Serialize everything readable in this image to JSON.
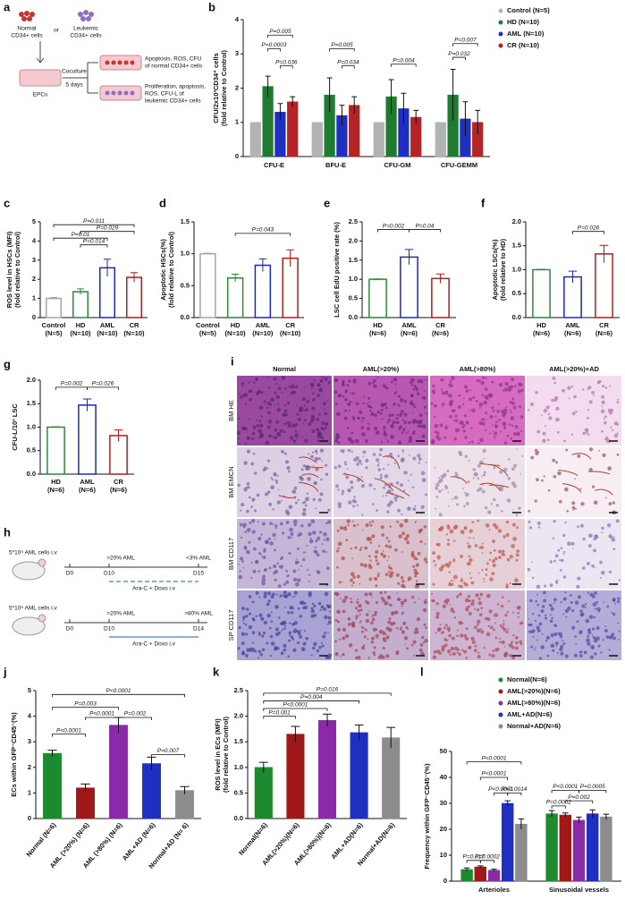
{
  "chart_data": [
    {
      "panel": "b",
      "type": "bar",
      "bar_fill": "solid",
      "y_label": [
        "CFU/2x10³CD34⁺ cells",
        "(fold relative to Control)"
      ],
      "categories": [
        "CFU-E",
        "BFU-E",
        "CFU-GM",
        "CFU-GEMM"
      ],
      "series": [
        {
          "name": "Control (N=5)",
          "color": "#b3b3b3",
          "values": [
            1,
            1,
            1,
            1
          ]
        },
        {
          "name": "HD (N=10)",
          "color": "#1e7b2f",
          "values": [
            2.05,
            1.8,
            1.75,
            1.8
          ],
          "errors": [
            0.3,
            0.5,
            0.5,
            0.75
          ]
        },
        {
          "name": "AML (N=10)",
          "color": "#1f2fbf",
          "values": [
            1.3,
            1.2,
            1.4,
            1.1
          ],
          "errors": [
            0.25,
            0.3,
            0.45,
            0.5
          ]
        },
        {
          "name": "CR (N=10)",
          "color": "#b52424",
          "values": [
            1.6,
            1.5,
            1.15,
            1.0
          ],
          "errors": [
            0.15,
            0.25,
            0.2,
            0.35
          ]
        }
      ],
      "ylim": [
        0,
        4
      ],
      "yticks": [
        0,
        1,
        2,
        3,
        4
      ],
      "legend": "upper right",
      "annotations": [
        "P=0.005",
        "P=0.0003",
        "P=0.036",
        "P=0.005",
        "P=0.034",
        "P=0.004",
        "P=0.007",
        "P=0.032"
      ]
    },
    {
      "panel": "c",
      "type": "bar",
      "bar_fill": "outline",
      "y_label": [
        "ROS level in HSCs (MFI)",
        "(fold relative to Control)"
      ],
      "categories": [
        "Control",
        "HD",
        "AML",
        "CR"
      ],
      "category_notes": [
        "(N=5)",
        "(N=10)",
        "(N=10)",
        "(N=10)"
      ],
      "colors": [
        "#a6a6a6",
        "#2e8b3a",
        "#1c2bb5",
        "#b01e1e"
      ],
      "values": [
        1,
        1.35,
        2.6,
        2.1
      ],
      "errors": [
        0.05,
        0.15,
        0.45,
        0.25
      ],
      "ylim": [
        0,
        5
      ],
      "yticks": [
        0,
        1,
        2,
        3,
        4,
        5
      ],
      "annotations": [
        "P=0.011",
        "P=0.029",
        "P=0.01",
        "P=0.014"
      ]
    },
    {
      "panel": "d",
      "type": "bar",
      "bar_fill": "outline",
      "y_label": [
        "Apoptotic HSCs(%)",
        "(fold relative to Control)"
      ],
      "categories": [
        "Control",
        "HD",
        "AML",
        "CR"
      ],
      "category_notes": [
        "(N=5)",
        "(N=10)",
        "(N=10)",
        "(N=10)"
      ],
      "colors": [
        "#a6a6a6",
        "#2e8b3a",
        "#1c2bb5",
        "#b01e1e"
      ],
      "values": [
        1,
        0.62,
        0.82,
        0.93
      ],
      "errors": [
        0.01,
        0.06,
        0.1,
        0.13
      ],
      "ylim": [
        0,
        1.5
      ],
      "yticks": [
        {
          "value": 0,
          "label": "0.0"
        },
        {
          "value": 0.5,
          "label": "0.5"
        },
        {
          "value": 1,
          "label": "1.0"
        },
        {
          "value": 1.5,
          "label": "1.5"
        }
      ],
      "annotations": [
        "P=0.043"
      ]
    },
    {
      "panel": "e",
      "type": "bar",
      "bar_fill": "outline",
      "y_label": [
        "LSC cell EdU positive rate (%)"
      ],
      "categories": [
        "HD",
        "AML",
        "CR"
      ],
      "category_notes": [
        "(N=6)",
        "(N=6)",
        "(N=6)"
      ],
      "colors": [
        "#2e8b3a",
        "#1c2bb5",
        "#b01e1e"
      ],
      "values": [
        1,
        1.58,
        1.02
      ],
      "errors": [
        0.01,
        0.2,
        0.12
      ],
      "ylim": [
        0,
        2.5
      ],
      "yticks": [
        {
          "value": 0,
          "label": "0.0"
        },
        {
          "value": 0.5,
          "label": "0.5"
        },
        {
          "value": 1,
          "label": "1.0"
        },
        {
          "value": 1.5,
          "label": "1.5"
        },
        {
          "value": 2,
          "label": "2.0"
        },
        {
          "value": 2.5,
          "label": "2.5"
        }
      ],
      "annotations": [
        "P=0.002",
        "P=0.04"
      ]
    },
    {
      "panel": "f",
      "type": "bar",
      "bar_fill": "outline",
      "y_label": [
        "Apoptotic LSCs(%)",
        "(fold relative to HD)"
      ],
      "categories": [
        "HD",
        "AML",
        "CR"
      ],
      "category_notes": [
        "(N=6)",
        "(N=6)",
        "(N=6)"
      ],
      "colors": [
        "#2e8b3a",
        "#1c2bb5",
        "#b01e1e"
      ],
      "values": [
        1,
        0.85,
        1.33
      ],
      "errors": [
        0.01,
        0.12,
        0.18
      ],
      "ylim": [
        0,
        2
      ],
      "yticks": [
        {
          "value": 0,
          "label": "0.0"
        },
        {
          "value": 0.5,
          "label": "0.5"
        },
        {
          "value": 1,
          "label": "1.0"
        },
        {
          "value": 1.5,
          "label": "1.5"
        },
        {
          "value": 2,
          "label": "2.0"
        }
      ],
      "annotations": [
        "P=0.026"
      ]
    },
    {
      "panel": "g",
      "type": "bar",
      "bar_fill": "outline",
      "y_label": [
        "CFU-L/10³ LSC"
      ],
      "categories": [
        "HD",
        "AML",
        "CR"
      ],
      "category_notes": [
        "(N=6)",
        "(N=6)",
        "(N=6)"
      ],
      "colors": [
        "#2e8b3a",
        "#1c2bb5",
        "#b01e1e"
      ],
      "values": [
        1,
        1.47,
        0.82
      ],
      "errors": [
        0.01,
        0.13,
        0.12
      ],
      "ylim": [
        0,
        2
      ],
      "yticks": [
        {
          "value": 0,
          "label": "0.0"
        },
        {
          "value": 0.5,
          "label": "0.5"
        },
        {
          "value": 1,
          "label": "1.0"
        },
        {
          "value": 1.5,
          "label": "1.5"
        },
        {
          "value": 2,
          "label": "2.0"
        }
      ],
      "annotations": [
        "P=0.002",
        "P=0.026"
      ]
    },
    {
      "panel": "j",
      "type": "bar",
      "bar_fill": "solid",
      "label_rotate": true,
      "y_label": [
        "ECs within GFP⁻CD45⁻(%)"
      ],
      "categories": [
        "Normal (N=6)",
        "AML (>20%) (N=6)",
        "AML (>80%) (N=6)",
        "AML+AD (N=6)",
        "Normal+AD (N= 6)"
      ],
      "colors": [
        "#1e8a30",
        "#a01818",
        "#8b2aa8",
        "#1f2fbf",
        "#8c8c8c"
      ],
      "values": [
        2.55,
        1.2,
        3.65,
        2.15,
        1.1
      ],
      "errors": [
        0.12,
        0.15,
        0.3,
        0.25,
        0.15
      ],
      "ylim": [
        0,
        5
      ],
      "yticks": [
        0,
        1,
        2,
        3,
        4,
        5
      ],
      "annotations": [
        "P<0.0001",
        "P=0.003",
        "P<0.0001",
        "P=0.002",
        "P<0.0001",
        "P=0.007"
      ]
    },
    {
      "panel": "k",
      "type": "bar",
      "bar_fill": "solid",
      "label_rotate": true,
      "y_label": [
        "ROS level in ECs (MFI)",
        "(fold relative to Control)"
      ],
      "categories": [
        "Normal(N=6)",
        "AML(>20%)(N=6)",
        "AML(>80%)(N=6)",
        "AML+AD(N=6)",
        "Normal+AD(N=6)"
      ],
      "colors": [
        "#1e8a30",
        "#a01818",
        "#8b2aa8",
        "#1f2fbf",
        "#8c8c8c"
      ],
      "values": [
        1.0,
        1.65,
        1.92,
        1.68,
        1.58
      ],
      "errors": [
        0.1,
        0.15,
        0.12,
        0.15,
        0.2
      ],
      "ylim": [
        0,
        2.5
      ],
      "yticks": [
        {
          "value": 0,
          "label": "0.0"
        },
        {
          "value": 0.5,
          "label": "0.5"
        },
        {
          "value": 1,
          "label": "1.0"
        },
        {
          "value": 1.5,
          "label": "1.5"
        },
        {
          "value": 2,
          "label": "2.0"
        },
        {
          "value": 2.5,
          "label": "2.5"
        }
      ],
      "annotations": [
        "P=0.016",
        "P=0.004",
        "P<0.0001",
        "P=0.001"
      ]
    },
    {
      "panel": "l",
      "type": "bar",
      "bar_fill": "solid",
      "y_label": [
        "Frequency within GFP⁻CD45⁻(%)"
      ],
      "categories": [
        "Arterioles",
        "Sinusoidal vessels"
      ],
      "series": [
        {
          "name": "Normal(N=6)",
          "color": "#1e8a30",
          "values": [
            4.5,
            26
          ],
          "errors": [
            0.6,
            1.2
          ]
        },
        {
          "name": "AML(>20%)(N=6)",
          "color": "#a01818",
          "values": [
            5.5,
            25.5
          ],
          "errors": [
            0.4,
            0.8
          ]
        },
        {
          "name": "AML(>80%)(N=6)",
          "color": "#8b2aa8",
          "values": [
            4.2,
            23.5
          ],
          "errors": [
            0.4,
            1.2
          ]
        },
        {
          "name": "AML+AD(N=6)",
          "color": "#1f2fbf",
          "values": [
            30,
            26
          ],
          "errors": [
            1.0,
            1.5
          ]
        },
        {
          "name": "Normal+AD(N=6)",
          "color": "#8c8c8c",
          "values": [
            22,
            24.8
          ],
          "errors": [
            2.0,
            1.0
          ]
        }
      ],
      "ylim": [
        0,
        50
      ],
      "yticks": [
        0,
        10,
        20,
        30,
        40,
        50
      ],
      "legend": "upper right",
      "annotations": [
        "P<0.0001",
        "P<0.0001",
        "P<0.0001",
        "P=0.0014",
        "P=0.017",
        "P=0.0002",
        "P<0.0001",
        "P=0.0005",
        "P=0.002",
        "P=0.0002"
      ]
    }
  ],
  "schematic_a": {
    "panel": "a",
    "normal_cells": [
      "Normal",
      "CD34+ cells"
    ],
    "or": "or",
    "leukemic_cells": [
      "Leukemic",
      "CD34+ cells"
    ],
    "epcs": "EPCs",
    "coculture": [
      "Coculture",
      "5 days"
    ],
    "outcome_normal": [
      "Apoptosis, ROS, CFU",
      "of normal CD34+ cells"
    ],
    "outcome_leukemic": [
      "Proliferation, apoptosis,",
      "ROS, CFU-L of",
      "leukemic CD34+ cells"
    ]
  },
  "schematic_h": {
    "panel": "h",
    "models": [
      {
        "injection": "5*10⁵ AML cells i.v",
        "days": [
          "D0",
          "D10",
          "D15"
        ],
        "stages": [
          ">20% AML",
          "<3% AML"
        ],
        "treatment": "Ara-C + Doxo i.v"
      },
      {
        "injection": "5*10⁵ AML cells i.v",
        "days": [
          "D0",
          "D10",
          "D14"
        ],
        "stages": [
          ">20% AML",
          ">80% AML"
        ],
        "treatment": "Ara-C + Doxo i.v"
      }
    ]
  },
  "histology_i": {
    "panel": "i",
    "columns": [
      "Normal",
      "AML(>20%)",
      "AML(>80%)",
      "AML(>20%)+AD"
    ],
    "rows": [
      "BM HE",
      "BM EMCN",
      "BM CD117",
      "SP CD117"
    ]
  }
}
